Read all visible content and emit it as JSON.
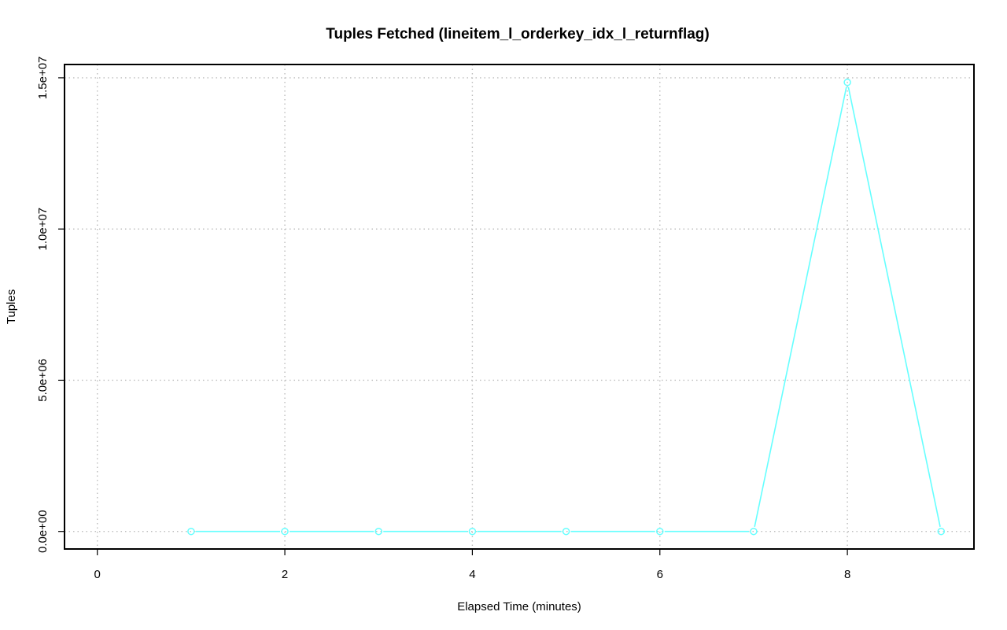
{
  "chart_data": {
    "type": "line",
    "title": "Tuples Fetched (lineitem_l_orderkey_idx_l_returnflag)",
    "xlabel": "Elapsed Time (minutes)",
    "ylabel": "Tuples",
    "xlim": [
      -0.35,
      9.35
    ],
    "ylim": [
      -580000,
      15440000
    ],
    "x_ticks": [
      0,
      2,
      4,
      6,
      8
    ],
    "x_tick_labels": [
      "0",
      "2",
      "4",
      "6",
      "8"
    ],
    "y_ticks": [
      0,
      5000000,
      10000000,
      15000000
    ],
    "y_tick_labels": [
      "0.0e+00",
      "5.0e+06",
      "1.0e+07",
      "1.5e+07"
    ],
    "grid": true,
    "series": [
      {
        "color": "#66ffff",
        "marker": "circle",
        "x": [
          1,
          2,
          3,
          4,
          5,
          6,
          7,
          8,
          9
        ],
        "values": [
          0,
          0,
          0,
          0,
          0,
          0,
          0,
          14850000,
          0
        ]
      }
    ]
  }
}
